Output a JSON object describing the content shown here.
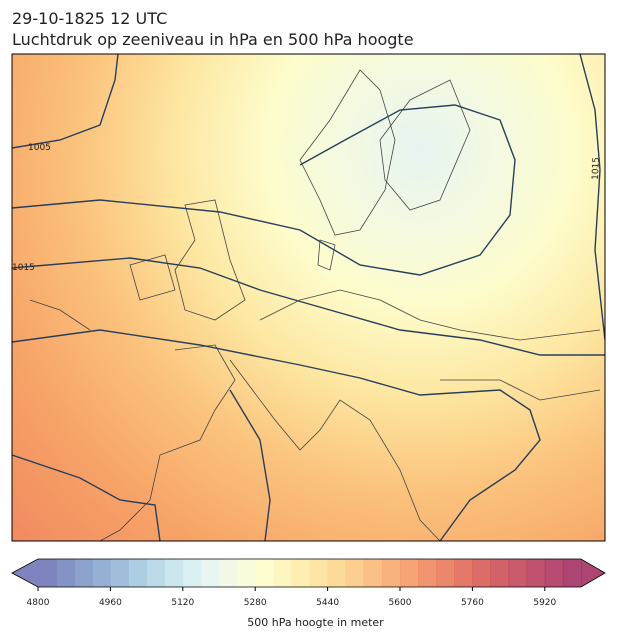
{
  "header": {
    "title": "29-10-1825 12 UTC",
    "subtitle": "Luchtdruk op zeeniveau in hPa en 500 hPa hoogte"
  },
  "map": {
    "contour_labels": [
      "1005",
      "1015",
      "1015"
    ]
  },
  "colorbar": {
    "label": "500 hPa hoogte in meter",
    "lim": [
      4800,
      6000
    ],
    "ticks": [
      4800,
      4960,
      5120,
      5280,
      5440,
      5600,
      5760,
      5920
    ],
    "colors": [
      "#6a6fb3",
      "#6f80bb",
      "#7891c3",
      "#82a2cb",
      "#8fb3d3",
      "#9fc4dc",
      "#b0d4e5",
      "#c2e2ec",
      "#d4edf1",
      "#e4f3ef",
      "#eff8e2",
      "#f7fcd4",
      "#fdfdc7",
      "#fef5b5",
      "#feeba4",
      "#fde096",
      "#fcd388",
      "#fbc57c",
      "#f9b571",
      "#f7a566",
      "#f4945e",
      "#ef8358",
      "#e87253",
      "#e0624f",
      "#d5544d",
      "#ca474f",
      "#bf3c53",
      "#b53356",
      "#aa2b58",
      "#9f255a"
    ]
  }
}
